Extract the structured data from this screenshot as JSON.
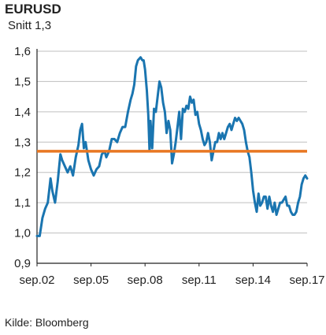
{
  "title": "EURUSD",
  "subtitle": "Snitt 1,3",
  "source": "Kilde: Bloomberg",
  "colors": {
    "series": "#1a75b0",
    "average": "#e87722",
    "grid": "#bfbfbf",
    "axis": "#222222"
  },
  "chart_data": {
    "type": "line",
    "title": "EURUSD",
    "subtitle": "Snitt 1,3",
    "ylim": [
      0.9,
      1.6
    ],
    "xlim": [
      2002.7,
      2017.7
    ],
    "y_ticks": [
      0.9,
      1.0,
      1.1,
      1.2,
      1.3,
      1.4,
      1.5,
      1.6
    ],
    "y_tick_labels": [
      "0,9",
      "1,0",
      "1,1",
      "1,2",
      "1,3",
      "1,4",
      "1,5",
      "1,6"
    ],
    "x_ticks": [
      2002.7,
      2005.7,
      2008.7,
      2011.7,
      2014.7,
      2017.7
    ],
    "x_tick_labels": [
      "sep.02",
      "sep.05",
      "sep.08",
      "sep.11",
      "sep.14",
      "sep.17"
    ],
    "grid": "horizontal",
    "average_line": 1.27,
    "series": [
      {
        "x": [
          2002.7,
          2002.85,
          2003.0,
          2003.15,
          2003.3,
          2003.45,
          2003.55,
          2003.7,
          2003.85,
          2004.0,
          2004.1,
          2004.25,
          2004.4,
          2004.55,
          2004.7,
          2004.85,
          2005.0,
          2005.1,
          2005.2,
          2005.3,
          2005.4,
          2005.55,
          2005.7,
          2005.85,
          2006.0,
          2006.15,
          2006.3,
          2006.45,
          2006.55,
          2006.7,
          2006.85,
          2007.0,
          2007.15,
          2007.3,
          2007.45,
          2007.6,
          2007.75,
          2007.9,
          2008.0,
          2008.1,
          2008.2,
          2008.3,
          2008.45,
          2008.55,
          2008.62,
          2008.7,
          2008.8,
          2008.88,
          2008.95,
          2009.0,
          2009.1,
          2009.2,
          2009.3,
          2009.4,
          2009.5,
          2009.6,
          2009.7,
          2009.8,
          2009.9,
          2010.0,
          2010.1,
          2010.2,
          2010.3,
          2010.4,
          2010.5,
          2010.6,
          2010.7,
          2010.8,
          2010.9,
          2011.0,
          2011.1,
          2011.2,
          2011.3,
          2011.4,
          2011.5,
          2011.6,
          2011.7,
          2011.8,
          2011.9,
          2012.0,
          2012.1,
          2012.2,
          2012.3,
          2012.4,
          2012.5,
          2012.6,
          2012.7,
          2012.8,
          2012.9,
          2013.0,
          2013.1,
          2013.2,
          2013.3,
          2013.4,
          2013.5,
          2013.6,
          2013.7,
          2013.8,
          2013.9,
          2014.0,
          2014.1,
          2014.2,
          2014.3,
          2014.4,
          2014.5,
          2014.6,
          2014.7,
          2014.8,
          2014.9,
          2015.0,
          2015.1,
          2015.2,
          2015.3,
          2015.4,
          2015.5,
          2015.6,
          2015.7,
          2015.8,
          2015.9,
          2016.0,
          2016.1,
          2016.2,
          2016.3,
          2016.4,
          2016.5,
          2016.6,
          2016.7,
          2016.8,
          2016.9,
          2017.0,
          2017.1,
          2017.2,
          2017.3,
          2017.4,
          2017.5,
          2017.6,
          2017.7
        ],
        "values": [
          0.99,
          0.99,
          1.05,
          1.08,
          1.1,
          1.18,
          1.14,
          1.1,
          1.17,
          1.26,
          1.24,
          1.22,
          1.2,
          1.22,
          1.19,
          1.25,
          1.29,
          1.34,
          1.36,
          1.28,
          1.3,
          1.24,
          1.21,
          1.19,
          1.21,
          1.22,
          1.26,
          1.27,
          1.25,
          1.27,
          1.31,
          1.31,
          1.3,
          1.33,
          1.35,
          1.35,
          1.4,
          1.44,
          1.46,
          1.49,
          1.55,
          1.57,
          1.58,
          1.57,
          1.57,
          1.54,
          1.47,
          1.39,
          1.27,
          1.37,
          1.28,
          1.41,
          1.4,
          1.45,
          1.5,
          1.48,
          1.43,
          1.4,
          1.33,
          1.37,
          1.34,
          1.23,
          1.26,
          1.3,
          1.35,
          1.4,
          1.31,
          1.41,
          1.4,
          1.42,
          1.41,
          1.45,
          1.43,
          1.44,
          1.39,
          1.4,
          1.36,
          1.34,
          1.31,
          1.29,
          1.3,
          1.33,
          1.3,
          1.24,
          1.27,
          1.3,
          1.3,
          1.33,
          1.31,
          1.33,
          1.31,
          1.33,
          1.35,
          1.36,
          1.34,
          1.36,
          1.38,
          1.37,
          1.38,
          1.37,
          1.36,
          1.34,
          1.3,
          1.27,
          1.25,
          1.2,
          1.14,
          1.1,
          1.07,
          1.13,
          1.09,
          1.1,
          1.12,
          1.12,
          1.08,
          1.12,
          1.09,
          1.07,
          1.1,
          1.06,
          1.08,
          1.1,
          1.1,
          1.11,
          1.12,
          1.09,
          1.09,
          1.07,
          1.06,
          1.06,
          1.07,
          1.1,
          1.12,
          1.16,
          1.18,
          1.19,
          1.18
        ]
      }
    ]
  }
}
